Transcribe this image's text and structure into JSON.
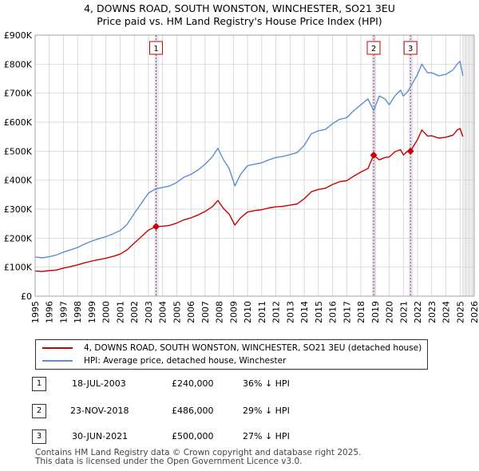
{
  "title_line1": "4, DOWNS ROAD, SOUTH WONSTON, WINCHESTER, SO21 3EU",
  "title_line2": "Price paid vs. HM Land Registry's House Price Index (HPI)",
  "legend": {
    "property_label": "4, DOWNS ROAD, SOUTH WONSTON, WINCHESTER, SO21 3EU (detached house)",
    "hpi_label": "HPI: Average price, detached house, Winchester"
  },
  "sales": [
    {
      "num": "1",
      "date": "18-JUL-2003",
      "price": "£240,000",
      "delta": "36% ↓ HPI"
    },
    {
      "num": "2",
      "date": "23-NOV-2018",
      "price": "£486,000",
      "delta": "29% ↓ HPI"
    },
    {
      "num": "3",
      "date": "30-JUN-2021",
      "price": "£500,000",
      "delta": "27% ↓ HPI"
    }
  ],
  "footer": {
    "line1": "Contains HM Land Registry data © Crown copyright and database right 2025.",
    "line2": "This data is licensed under the Open Government Licence v3.0."
  },
  "colors": {
    "property": "#cc0000",
    "hpi": "#5b8fd1",
    "shade": "#dde5f5",
    "grid": "#cccccc"
  },
  "chart_data": {
    "type": "line",
    "ylim": [
      0,
      900000
    ],
    "xlim": [
      1995,
      2026
    ],
    "y_ticks": [
      {
        "value": 0,
        "label": "£0"
      },
      {
        "value": 100000,
        "label": "£100K"
      },
      {
        "value": 200000,
        "label": "£200K"
      },
      {
        "value": 300000,
        "label": "£300K"
      },
      {
        "value": 400000,
        "label": "£400K"
      },
      {
        "value": 500000,
        "label": "£500K"
      },
      {
        "value": 600000,
        "label": "£600K"
      },
      {
        "value": 700000,
        "label": "£700K"
      },
      {
        "value": 800000,
        "label": "£800K"
      },
      {
        "value": 900000,
        "label": "£900K"
      }
    ],
    "x_ticks": [
      "1995",
      "1996",
      "1997",
      "1998",
      "1999",
      "2000",
      "2001",
      "2002",
      "2003",
      "2004",
      "2005",
      "2006",
      "2007",
      "2008",
      "2009",
      "2010",
      "2011",
      "2012",
      "2013",
      "2014",
      "2015",
      "2016",
      "2017",
      "2018",
      "2019",
      "2020",
      "2021",
      "2022",
      "2023",
      "2024",
      "2025",
      "2026"
    ],
    "series": [
      {
        "name": "HPI: Average price, detached house, Winchester",
        "x": [
          1995.0,
          1995.5,
          1996.0,
          1996.5,
          1997.0,
          1997.5,
          1998.0,
          1998.5,
          1999.0,
          1999.5,
          2000.0,
          2000.5,
          2001.0,
          2001.5,
          2002.0,
          2002.5,
          2003.0,
          2003.5,
          2004.0,
          2004.5,
          2005.0,
          2005.5,
          2006.0,
          2006.5,
          2007.0,
          2007.5,
          2007.9,
          2008.3,
          2008.7,
          2009.1,
          2009.5,
          2010.0,
          2010.5,
          2011.0,
          2011.5,
          2012.0,
          2012.5,
          2013.0,
          2013.5,
          2014.0,
          2014.5,
          2015.0,
          2015.5,
          2016.0,
          2016.5,
          2017.0,
          2017.5,
          2018.0,
          2018.5,
          2018.9,
          2019.3,
          2019.7,
          2020.0,
          2020.4,
          2020.8,
          2021.0,
          2021.3,
          2021.6,
          2022.0,
          2022.3,
          2022.7,
          2023.0,
          2023.5,
          2024.0,
          2024.5,
          2024.8,
          2025.0,
          2025.2
        ],
        "values": [
          135000,
          132000,
          136000,
          142000,
          152000,
          160000,
          168000,
          180000,
          190000,
          198000,
          205000,
          215000,
          226000,
          248000,
          285000,
          320000,
          355000,
          370000,
          375000,
          380000,
          392000,
          410000,
          420000,
          435000,
          455000,
          480000,
          510000,
          470000,
          440000,
          380000,
          420000,
          450000,
          455000,
          460000,
          470000,
          478000,
          482000,
          488000,
          495000,
          520000,
          560000,
          570000,
          575000,
          595000,
          610000,
          615000,
          640000,
          660000,
          680000,
          640000,
          690000,
          680000,
          660000,
          690000,
          710000,
          690000,
          705000,
          730000,
          765000,
          800000,
          770000,
          770000,
          760000,
          765000,
          780000,
          800000,
          810000,
          760000
        ]
      },
      {
        "name": "4, DOWNS ROAD, SOUTH WONSTON, WINCHESTER, SO21 3EU (detached house)",
        "x": [
          1995.0,
          1995.5,
          1996.0,
          1996.5,
          1997.0,
          1997.5,
          1998.0,
          1998.5,
          1999.0,
          1999.5,
          2000.0,
          2000.5,
          2001.0,
          2001.5,
          2002.0,
          2002.5,
          2003.0,
          2003.54,
          2004.0,
          2004.5,
          2005.0,
          2005.5,
          2006.0,
          2006.5,
          2007.0,
          2007.5,
          2007.9,
          2008.3,
          2008.7,
          2009.1,
          2009.5,
          2010.0,
          2010.5,
          2011.0,
          2011.5,
          2012.0,
          2012.5,
          2013.0,
          2013.5,
          2014.0,
          2014.5,
          2015.0,
          2015.5,
          2016.0,
          2016.5,
          2017.0,
          2017.5,
          2018.0,
          2018.5,
          2018.9,
          2019.3,
          2019.7,
          2020.0,
          2020.4,
          2020.8,
          2021.0,
          2021.3,
          2021.5,
          2022.0,
          2022.3,
          2022.7,
          2023.0,
          2023.5,
          2024.0,
          2024.5,
          2024.8,
          2025.0,
          2025.2
        ],
        "values": [
          87000,
          85000,
          88000,
          90000,
          97000,
          102000,
          108000,
          115000,
          121000,
          126000,
          131000,
          137000,
          145000,
          160000,
          183000,
          205000,
          228000,
          240000,
          241000,
          244000,
          252000,
          263000,
          270000,
          280000,
          292000,
          308000,
          330000,
          302000,
          283000,
          245000,
          270000,
          290000,
          295000,
          298000,
          304000,
          308000,
          310000,
          314000,
          318000,
          336000,
          360000,
          368000,
          372000,
          385000,
          395000,
          398000,
          414000,
          428000,
          440000,
          486000,
          470000,
          478000,
          480000,
          498000,
          505000,
          487000,
          500000,
          500000,
          540000,
          573000,
          552000,
          553000,
          545000,
          548000,
          555000,
          573000,
          578000,
          550000
        ]
      }
    ],
    "sale_markers": [
      {
        "num": "1",
        "x": 2003.54,
        "value": 240000
      },
      {
        "num": "2",
        "x": 2018.9,
        "value": 486000
      },
      {
        "num": "3",
        "x": 2021.5,
        "value": 500000
      }
    ],
    "forecast_from": 2025.2
  }
}
